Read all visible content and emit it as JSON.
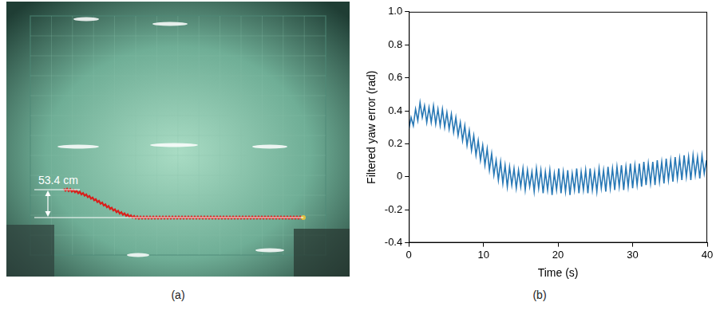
{
  "photo": {
    "label": "(a)",
    "annotation": "53.4 cm"
  },
  "chart_data": {
    "label": "(b)",
    "type": "line",
    "x_label": "Time (s)",
    "y_label": "Filtered yaw error (rad)",
    "color": "#2878b5",
    "grid": false,
    "xlim": [
      0,
      40
    ],
    "xticks": [
      0,
      10,
      20,
      30,
      40
    ],
    "ylim": [
      -0.4,
      1
    ],
    "yticks": [
      -0.4,
      -0.2,
      0,
      0.2,
      0.4,
      0.6,
      0.8,
      {
        "value": 1,
        "label": "1.0"
      }
    ],
    "x": [
      0,
      0.3,
      0.6,
      0.9,
      1.2,
      1.5,
      1.8,
      2.1,
      2.4,
      2.7,
      3,
      3.3,
      3.6,
      3.9,
      4.2,
      4.5,
      4.8,
      5.1,
      5.4,
      5.7,
      6,
      6.3,
      6.6,
      6.9,
      7.2,
      7.5,
      7.8,
      8.1,
      8.4,
      8.7,
      9,
      9.3,
      9.6,
      9.9,
      10.2,
      10.5,
      10.8,
      11.1,
      11.4,
      11.7,
      12,
      12.3,
      12.6,
      12.9,
      13.2,
      13.5,
      13.8,
      14.1,
      14.4,
      14.7,
      15,
      15.3,
      15.6,
      15.9,
      16.2,
      16.5,
      16.8,
      17.1,
      17.4,
      17.7,
      18,
      18.3,
      18.6,
      18.9,
      19.2,
      19.5,
      19.8,
      20.1,
      20.4,
      20.7,
      21,
      21.3,
      21.6,
      21.9,
      22.2,
      22.5,
      22.8,
      23.1,
      23.4,
      23.7,
      24,
      24.3,
      24.6,
      24.9,
      25.2,
      25.5,
      25.8,
      26.1,
      26.4,
      26.7,
      27,
      27.3,
      27.6,
      27.9,
      28.2,
      28.5,
      28.8,
      29.1,
      29.4,
      29.7,
      30,
      30.3,
      30.6,
      30.9,
      31.2,
      31.5,
      31.8,
      32.1,
      32.4,
      32.7,
      33,
      33.3,
      33.6,
      33.9,
      34.2,
      34.5,
      34.8,
      35.1,
      35.4,
      35.7,
      36,
      36.3,
      36.6,
      36.9,
      37.2,
      37.5,
      37.8,
      38.1,
      38.4,
      38.7,
      39,
      39.3,
      39.6,
      39.9
    ],
    "values": [
      0.29,
      0.36,
      0.31,
      0.41,
      0.34,
      0.45,
      0.36,
      0.43,
      0.33,
      0.42,
      0.33,
      0.43,
      0.32,
      0.41,
      0.31,
      0.41,
      0.3,
      0.39,
      0.29,
      0.38,
      0.27,
      0.36,
      0.25,
      0.33,
      0.22,
      0.31,
      0.19,
      0.28,
      0.16,
      0.25,
      0.13,
      0.22,
      0.1,
      0.19,
      0.07,
      0.17,
      0.04,
      0.14,
      0.01,
      0.1,
      -0.02,
      0.09,
      -0.04,
      0.07,
      -0.06,
      0.06,
      -0.05,
      0.05,
      -0.07,
      0.04,
      -0.06,
      0.05,
      -0.08,
      0.04,
      -0.06,
      0.03,
      -0.09,
      0.05,
      -0.07,
      0.04,
      -0.1,
      0.03,
      -0.08,
      0.04,
      -0.11,
      0.02,
      -0.08,
      0.05,
      -0.1,
      0.03,
      -0.09,
      0.04,
      -0.11,
      0.02,
      -0.08,
      0.05,
      -0.1,
      0.03,
      -0.08,
      0.04,
      -0.1,
      0.05,
      -0.08,
      0.03,
      -0.09,
      0.05,
      -0.07,
      0.04,
      -0.09,
      0.06,
      -0.07,
      0.05,
      -0.08,
      0.06,
      -0.06,
      0.07,
      -0.08,
      0.06,
      -0.06,
      0.08,
      -0.07,
      0.07,
      -0.05,
      0.08,
      -0.06,
      0.09,
      -0.05,
      0.08,
      -0.04,
      0.09,
      -0.05,
      0.1,
      -0.03,
      0.09,
      -0.04,
      0.11,
      -0.02,
      0.1,
      -0.03,
      0.12,
      -0.01,
      0.11,
      -0.02,
      0.13,
      0,
      0.12,
      -0.02,
      0.13,
      0.01,
      0.12,
      -0.01,
      0.13,
      0.02,
      0.1
    ]
  }
}
